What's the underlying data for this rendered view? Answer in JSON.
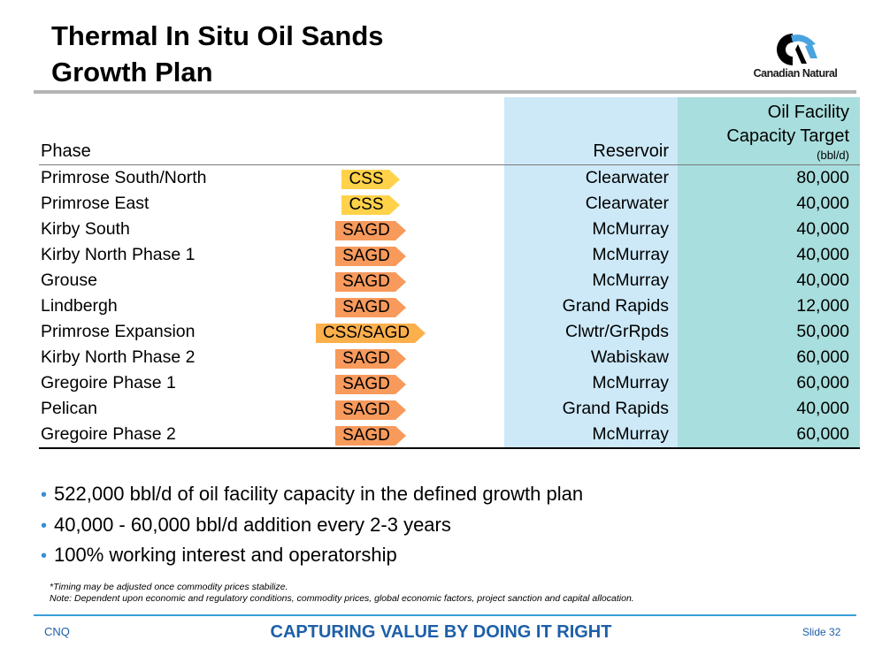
{
  "title": {
    "line1": "Thermal In Situ Oil Sands",
    "line2": "Growth Plan"
  },
  "logo": {
    "text": "Canadian Natural",
    "icon": "canadian-natural-logo-icon",
    "colors": [
      "#000000",
      "#4aa3df"
    ]
  },
  "table": {
    "headers": {
      "phase": "Phase",
      "reservoir": "Reservoir",
      "capacity_line1": "Oil Facility",
      "capacity_line2": "Capacity Target",
      "capacity_unit": "(bbl/d)"
    },
    "rows": [
      {
        "phase": "Primrose South/North",
        "method": "CSS",
        "reservoir": "Clearwater",
        "capacity": "80,000"
      },
      {
        "phase": "Primrose East",
        "method": "CSS",
        "reservoir": "Clearwater",
        "capacity": "40,000"
      },
      {
        "phase": "Kirby South",
        "method": "SAGD",
        "reservoir": "McMurray",
        "capacity": "40,000"
      },
      {
        "phase": "Kirby North Phase 1",
        "method": "SAGD",
        "reservoir": "McMurray",
        "capacity": "40,000"
      },
      {
        "phase": "Grouse",
        "method": "SAGD",
        "reservoir": "McMurray",
        "capacity": "40,000"
      },
      {
        "phase": "Lindbergh",
        "method": "SAGD",
        "reservoir": "Grand Rapids",
        "capacity": "12,000"
      },
      {
        "phase": "Primrose Expansion",
        "method": "CSS/SAGD",
        "reservoir": "Clwtr/GrRpds",
        "capacity": "50,000"
      },
      {
        "phase": "Kirby North Phase 2",
        "method": "SAGD",
        "reservoir": "Wabiskaw",
        "capacity": "60,000"
      },
      {
        "phase": "Gregoire Phase 1",
        "method": "SAGD",
        "reservoir": "McMurray",
        "capacity": "60,000"
      },
      {
        "phase": "Pelican",
        "method": "SAGD",
        "reservoir": "Grand Rapids",
        "capacity": "40,000"
      },
      {
        "phase": "Gregoire Phase 2",
        "method": "SAGD",
        "reservoir": "McMurray",
        "capacity": "60,000"
      }
    ],
    "colors": {
      "reservoir_column": "#cde9f8",
      "capacity_column": "#a8dedd",
      "css_tag": "#ffd24a",
      "sagd_tag": "#f79a5c"
    }
  },
  "bullets": [
    "522,000 bbl/d of oil facility capacity in the defined growth plan",
    "40,000 - 60,000 bbl/d addition every 2-3 years",
    "100% working interest and operatorship"
  ],
  "notes": {
    "timing": "*Timing may be adjusted once commodity prices stabilize.",
    "note": "Note: Dependent upon economic and regulatory conditions, commodity prices, global economic factors, project sanction and capital allocation."
  },
  "footer": {
    "left": "CNQ",
    "center": "CAPTURING VALUE BY DOING IT RIGHT",
    "slide": "Slide 32",
    "color": "#1d5fa8"
  }
}
